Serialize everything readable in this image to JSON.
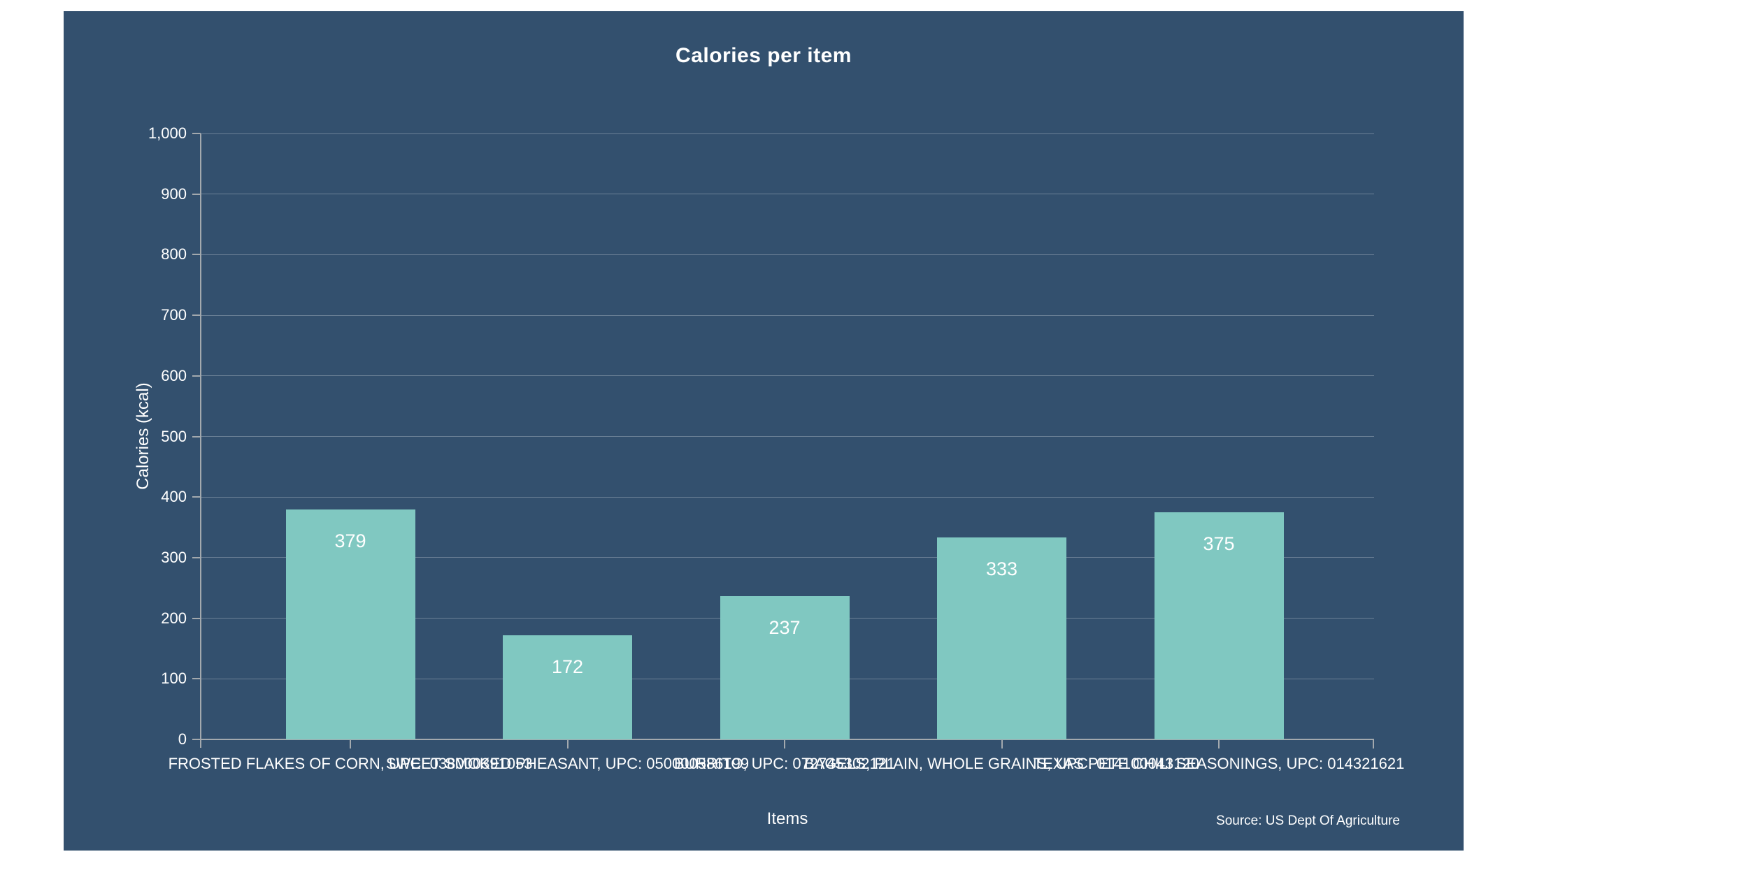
{
  "chart_data": {
    "type": "bar",
    "title": "Calories per item",
    "xlabel": "Items",
    "ylabel": "Calories (kcal)",
    "source": "Source: US Dept Of Agriculture",
    "categories": [
      "FROSTED FLAKES OF CORN, UPC: 038000391053",
      "SWEET SMOKED PHEASANT, UPC: 050000586199",
      "BURRITO, UPC: 072745302121",
      "BAGELS, PLAIN, WHOLE GRAINS, UPC: 014100043120",
      "TEXAS PETE CHILI SEASONINGS, UPC: 014321621"
    ],
    "values": [
      379,
      172,
      237,
      333,
      375
    ],
    "value_labels": [
      "379",
      "172",
      "237",
      "333",
      "375"
    ],
    "ylim": [
      0,
      1000
    ],
    "ytick_step": 100,
    "ytick_labels": [
      "0",
      "100",
      "200",
      "300",
      "400",
      "500",
      "600",
      "700",
      "800",
      "900",
      "1,000"
    ],
    "grid": true,
    "legend": false,
    "colors": {
      "page_background": "#FFFFFF",
      "panel_background": "#33506E",
      "bar": "#80C8C1",
      "axis": "#A3A9AE",
      "grid": "rgba(255,255,255,0.28)",
      "text": "#FFFFFF"
    }
  }
}
